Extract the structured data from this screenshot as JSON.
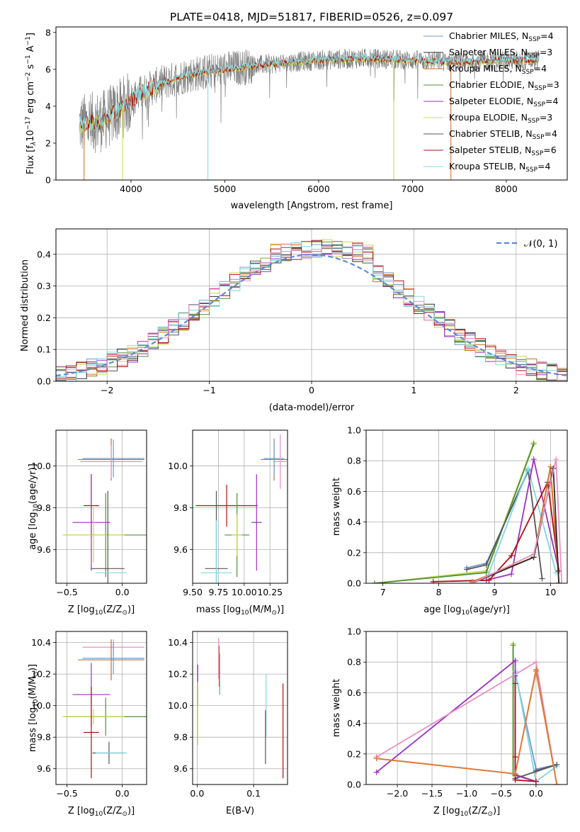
{
  "figure": {
    "title": "PLATE=0418, MJD=51817, FIBERID=0526, z=0.097"
  },
  "colors": {
    "Chabrier MILES": "#6e9bd1",
    "Salpeter MILES": "#2b2b2b",
    "Kroupa MILES": "#d2691e",
    "Chabrier ELODIE": "#4f8f3a",
    "Salpeter ELODIE": "#9b30c0",
    "Kroupa ELODIE": "#c8d84a",
    "Chabrier STELIB": "#555555",
    "Salpeter STELIB": "#b01010",
    "Kroupa STELIB": "#80d8e0",
    "pink": "#e890c0",
    "orange": "#e07b39",
    "normal": "#5b8bd8",
    "data": "#808080"
  },
  "chart_data": [
    {
      "id": "spectrum",
      "type": "line",
      "xlabel": "wavelength [Angstrom, rest frame]",
      "ylabel_main": "Flux [f",
      "ylabel_sub": "λ",
      "ylabel_rest": "10",
      "ylabel_exp": "−17",
      "ylabel_units": " erg cm",
      "ylabel_exp2": "−2",
      "ylabel_s": " s",
      "ylabel_exp3": "−1",
      "ylabel_a": " A",
      "ylabel_exp4": "−1",
      "ylabel_end": "]",
      "xlim": [
        3200,
        8650
      ],
      "ylim": [
        0,
        8.3
      ],
      "xticks": [
        "4000",
        "5000",
        "6000",
        "7000",
        "8000"
      ],
      "xtick_values": [
        4000,
        5000,
        6000,
        7000,
        8000
      ],
      "yticks": [
        "0",
        "2",
        "4",
        "6",
        "8"
      ],
      "ytick_values": [
        0,
        2,
        4,
        6,
        8
      ],
      "legend_position": "upper-right",
      "legend": [
        {
          "name": "Chabrier MILES, N",
          "sub": "SSP",
          "val": "=4",
          "color_key": "Chabrier MILES"
        },
        {
          "name": "Salpeter MILES, N",
          "sub": "SSP",
          "val": "=3",
          "color_key": "Salpeter MILES"
        },
        {
          "name": "Kroupa MILES, N",
          "sub": "SSP",
          "val": "=4",
          "color_key": "Kroupa MILES"
        },
        {
          "name": "Chabrier ELODIE, N",
          "sub": "SSP",
          "val": "=3",
          "color_key": "Chabrier ELODIE"
        },
        {
          "name": "Salpeter ELODIE, N",
          "sub": "SSP",
          "val": "=4",
          "color_key": "Salpeter ELODIE"
        },
        {
          "name": "Kroupa ELODIE, N",
          "sub": "SSP",
          "val": "=3",
          "color_key": "Kroupa ELODIE"
        },
        {
          "name": "Chabrier STELIB, N",
          "sub": "SSP",
          "val": "=4",
          "color_key": "Chabrier STELIB"
        },
        {
          "name": "Salpeter STELIB, N",
          "sub": "SSP",
          "val": "=6",
          "color_key": "Salpeter STELIB"
        },
        {
          "name": "Kroupa STELIB, N",
          "sub": "SSP",
          "val": "=4",
          "color_key": "Kroupa STELIB"
        }
      ],
      "continuum_x": [
        3450,
        3700,
        3900,
        4100,
        4300,
        4600,
        5000,
        5500,
        6000,
        6500,
        7000,
        7500,
        8000,
        8350
      ],
      "continuum_y": [
        3.0,
        3.2,
        3.9,
        4.7,
        5.2,
        5.7,
        6.0,
        6.3,
        6.5,
        6.6,
        6.5,
        6.4,
        6.5,
        6.5
      ],
      "model_xrange": [
        3450,
        8350
      ],
      "model_colors": [
        "Kroupa ELODIE",
        "Salpeter STELIB",
        "Kroupa STELIB"
      ],
      "edge_lines": [
        {
          "x": 3500,
          "color_key": "Kroupa MILES"
        },
        {
          "x": 3910,
          "color_key": "Kroupa ELODIE"
        },
        {
          "x": 4820,
          "color_key": "Kroupa STELIB"
        },
        {
          "x": 6800,
          "color_key": "Kroupa ELODIE"
        },
        {
          "x": 7410,
          "color_key": "Kroupa MILES"
        }
      ]
    },
    {
      "id": "residuals",
      "type": "line",
      "xlabel": "(data-model)/error",
      "ylabel": "Normed distribution",
      "xlim": [
        -2.5,
        2.5
      ],
      "ylim": [
        0,
        0.48
      ],
      "grid": true,
      "xticks": [
        "−2",
        "−1",
        "0",
        "1",
        "2"
      ],
      "xtick_values": [
        -2,
        -1,
        0,
        1,
        2
      ],
      "yticks": [
        "0.0",
        "0.1",
        "0.2",
        "0.3",
        "0.4"
      ],
      "ytick_values": [
        0,
        0.1,
        0.2,
        0.3,
        0.4
      ],
      "legend_position": "upper-right",
      "legend_label": "𝒩(0, 1)",
      "bin_width": 0.1,
      "histogram_colors": [
        "Chabrier MILES",
        "Salpeter MILES",
        "Kroupa MILES",
        "Chabrier ELODIE",
        "Salpeter ELODIE",
        "Kroupa ELODIE",
        "Chabrier STELIB",
        "Salpeter STELIB",
        "Kroupa STELIB",
        "pink"
      ]
    },
    {
      "id": "age_vs_Z",
      "type": "scatter",
      "xlabel": "Z [log",
      "xlabel_sub": "10",
      "xlabel_rest": "(Z/Z",
      "xlabel_sun": "⊙",
      "xlabel_end": ")]",
      "ylabel": "age  [log",
      "ylabel_sub": "10",
      "ylabel_rest": "(age/yr)]",
      "xlim": [
        -0.6,
        0.22
      ],
      "ylim": [
        9.44,
        10.17
      ],
      "grid": true,
      "xticks": [
        "−0.5",
        "0.0"
      ],
      "xtick_values": [
        -0.5,
        0.0
      ],
      "yticks": [
        "9.6",
        "9.8",
        "10.0"
      ],
      "ytick_values": [
        9.6,
        9.8,
        10.0
      ],
      "points": [
        {
          "x": -0.1,
          "y": 10.03,
          "xerr": 0.3,
          "yerr": 0.1,
          "color_key": "Kroupa MILES"
        },
        {
          "x": -0.08,
          "y": 10.035,
          "xerr": 0.28,
          "yerr": 0.09,
          "color_key": "Chabrier MILES"
        },
        {
          "x": -0.1,
          "y": 10.02,
          "xerr": 0.28,
          "yerr": 0.08,
          "color_key": "pink"
        },
        {
          "x": -0.28,
          "y": 9.81,
          "xerr": 0.07,
          "yerr": 0.15,
          "color_key": "Salpeter STELIB"
        },
        {
          "x": -0.28,
          "y": 9.73,
          "xerr": 0.17,
          "yerr": 0.23,
          "color_key": "Salpeter ELODIE"
        },
        {
          "x": -0.15,
          "y": 9.67,
          "xerr": 0.37,
          "yerr": 0.2,
          "color_key": "Chabrier ELODIE"
        },
        {
          "x": -0.26,
          "y": 9.67,
          "xerr": 0.28,
          "yerr": 0.13,
          "color_key": "Kroupa ELODIE"
        },
        {
          "x": -0.13,
          "y": 9.51,
          "xerr": 0.15,
          "yerr": 0.37,
          "color_key": "Chabrier STELIB"
        },
        {
          "x": -0.1,
          "y": 9.49,
          "xerr": 0.14,
          "yerr": 0.0,
          "color_key": "Kroupa STELIB"
        }
      ]
    },
    {
      "id": "age_vs_mass",
      "type": "scatter",
      "xlabel": "mass [log",
      "xlabel_sub": "10",
      "xlabel_rest": "(M/M",
      "xlabel_sun": "⊙",
      "xlabel_end": ")]",
      "xlim": [
        9.5,
        10.42
      ],
      "ylim": [
        9.44,
        10.17
      ],
      "grid": true,
      "xticks": [
        "9.50",
        "9.75",
        "10.00",
        "10.25"
      ],
      "xtick_values": [
        9.5,
        9.75,
        10.0,
        10.25
      ],
      "yticks": [
        "9.6",
        "9.8",
        "10.0"
      ],
      "ytick_values": [
        9.6,
        9.8,
        10.0
      ],
      "points": [
        {
          "x": 10.29,
          "y": 10.03,
          "xerr": 0.13,
          "yerr": 0.1,
          "color_key": "Kroupa MILES"
        },
        {
          "x": 10.29,
          "y": 10.035,
          "xerr": 0.1,
          "yerr": 0.09,
          "color_key": "Chabrier MILES"
        },
        {
          "x": 10.35,
          "y": 10.02,
          "xerr": 0.06,
          "yerr": 0.13,
          "color_key": "pink"
        },
        {
          "x": 9.83,
          "y": 9.81,
          "xerr": 0.3,
          "yerr": 0.1,
          "color_key": "Salpeter STELIB"
        },
        {
          "x": 10.12,
          "y": 9.73,
          "xerr": 0.05,
          "yerr": 0.23,
          "color_key": "Salpeter ELODIE"
        },
        {
          "x": 9.93,
          "y": 9.67,
          "xerr": 0.12,
          "yerr": 0.2,
          "color_key": "Chabrier ELODIE"
        },
        {
          "x": 9.93,
          "y": 9.67,
          "xerr": 0.05,
          "yerr": 0.1,
          "color_key": "Kroupa ELODIE"
        },
        {
          "x": 9.73,
          "y": 9.51,
          "xerr": 0.11,
          "yerr": 0.37,
          "color_key": "Chabrier STELIB"
        },
        {
          "x": 9.73,
          "y": 9.49,
          "xerr": 0.15,
          "yerr": 0.25,
          "color_key": "Kroupa STELIB"
        }
      ]
    },
    {
      "id": "mass_weight_vs_age",
      "type": "line",
      "xlabel": "age  [log",
      "xlabel_sub": "10",
      "xlabel_rest": "(age/yr)]",
      "ylabel": "mass weight",
      "xlim": [
        6.7,
        10.3
      ],
      "ylim": [
        0,
        1
      ],
      "grid": true,
      "xticks": [
        "7",
        "8",
        "9",
        "10"
      ],
      "xtick_values": [
        7,
        8,
        9,
        10
      ],
      "yticks": [
        "0.0",
        "0.2",
        "0.4",
        "0.6",
        "0.8",
        "1.0"
      ],
      "ytick_values": [
        0,
        0.2,
        0.4,
        0.6,
        0.8,
        1.0
      ],
      "series": [
        {
          "color_key": "Kroupa ELODIE",
          "x": [
            6.85,
            8.85,
            9.7
          ],
          "y": [
            0.0,
            0.08,
            0.92
          ]
        },
        {
          "color_key": "Chabrier ELODIE",
          "x": [
            6.85,
            8.85,
            9.7
          ],
          "y": [
            0.0,
            0.07,
            0.91
          ]
        },
        {
          "color_key": "Chabrier MILES",
          "x": [
            8.5,
            8.85,
            9.6
          ],
          "y": [
            0.1,
            0.13,
            0.73
          ]
        },
        {
          "color_key": "Chabrier STELIB",
          "x": [
            8.5,
            8.85,
            9.6,
            9.85
          ],
          "y": [
            0.09,
            0.12,
            0.74,
            0.03
          ]
        },
        {
          "color_key": "Kroupa STELIB",
          "x": [
            8.85,
            9.6,
            10.1
          ],
          "y": [
            0.02,
            0.75,
            0.07
          ]
        },
        {
          "color_key": "Salpeter ELODIE",
          "x": [
            8.85,
            9.3,
            9.7,
            10.15
          ],
          "y": [
            0.02,
            0.06,
            0.81,
            0.08
          ]
        },
        {
          "color_key": "Salpeter STELIB",
          "x": [
            7.9,
            8.9,
            9.3,
            9.95,
            10.15
          ],
          "y": [
            0.01,
            0.02,
            0.18,
            0.66,
            0.08
          ]
        },
        {
          "color_key": "Kroupa MILES",
          "x": [
            8.6,
            9.7,
            10.0,
            10.15
          ],
          "y": [
            0.01,
            0.17,
            0.76,
            0.0
          ]
        },
        {
          "color_key": "Salpeter MILES",
          "x": [
            8.6,
            9.7,
            10.05,
            10.15
          ],
          "y": [
            0.0,
            0.17,
            0.75,
            0.0
          ]
        },
        {
          "color_key": "pink",
          "x": [
            8.6,
            9.7,
            10.1,
            10.2
          ],
          "y": [
            0.0,
            0.19,
            0.81,
            0.0
          ]
        }
      ]
    },
    {
      "id": "mass_vs_Z",
      "type": "scatter",
      "xlabel": "Z [log",
      "xlabel_sub": "10",
      "xlabel_rest": "(Z/Z",
      "xlabel_sun": "⊙",
      "xlabel_end": ")]",
      "ylabel": "mass [log",
      "ylabel_sub": "10",
      "ylabel_rest": "(M/M",
      "ylabel_sun": "⊙",
      "ylabel_end": ")]",
      "xlim": [
        -0.6,
        0.22
      ],
      "ylim": [
        9.5,
        10.47
      ],
      "grid": true,
      "xticks": [
        "−0.5",
        "0.0"
      ],
      "xtick_values": [
        -0.5,
        0.0
      ],
      "yticks": [
        "9.6",
        "9.8",
        "10.0",
        "10.2",
        "10.4"
      ],
      "ytick_values": [
        9.6,
        9.8,
        10.0,
        10.2,
        10.4
      ],
      "points": [
        {
          "x": -0.08,
          "y": 10.37,
          "xerr": 0.28,
          "yerr": 0.05,
          "color_key": "pink"
        },
        {
          "x": -0.08,
          "y": 10.3,
          "xerr": 0.28,
          "yerr": 0.1,
          "color_key": "Chabrier MILES"
        },
        {
          "x": -0.1,
          "y": 10.29,
          "xerr": 0.3,
          "yerr": 0.13,
          "color_key": "Kroupa MILES"
        },
        {
          "x": -0.28,
          "y": 10.07,
          "xerr": 0.17,
          "yerr": 0.2,
          "color_key": "Salpeter ELODIE"
        },
        {
          "x": -0.15,
          "y": 9.93,
          "xerr": 0.37,
          "yerr": 0.12,
          "color_key": "Chabrier ELODIE"
        },
        {
          "x": -0.26,
          "y": 9.93,
          "xerr": 0.28,
          "yerr": 0.05,
          "color_key": "Kroupa ELODIE"
        },
        {
          "x": -0.28,
          "y": 9.83,
          "xerr": 0.07,
          "yerr": 0.29,
          "color_key": "Salpeter STELIB"
        },
        {
          "x": -0.12,
          "y": 9.7,
          "xerr": 0.15,
          "yerr": 0.07,
          "color_key": "Chabrier STELIB"
        },
        {
          "x": -0.1,
          "y": 9.7,
          "xerr": 0.14,
          "yerr": 0.0,
          "color_key": "Kroupa STELIB"
        }
      ]
    },
    {
      "id": "mass_vs_ebv",
      "type": "scatter",
      "xlabel": "E(B-V)",
      "xlim": [
        -0.008,
        0.16
      ],
      "ylim": [
        9.5,
        10.47
      ],
      "grid": true,
      "xticks": [
        "0.0",
        "0.1"
      ],
      "xtick_values": [
        0.0,
        0.1
      ],
      "yticks": [
        "9.6",
        "9.8",
        "10.0",
        "10.2",
        "10.4"
      ],
      "ytick_values": [
        9.6,
        9.8,
        10.0,
        10.2,
        10.4
      ],
      "points": [
        {
          "x": 0.001,
          "y": 10.13,
          "xerr": 0,
          "yerr": 0.13,
          "color_key": "Salpeter ELODIE"
        },
        {
          "x": 0.001,
          "y": 9.95,
          "xerr": 0,
          "yerr": 0.2,
          "color_key": "Kroupa ELODIE"
        },
        {
          "x": 0.038,
          "y": 10.3,
          "xerr": 0,
          "yerr": 0.13,
          "color_key": "pink"
        },
        {
          "x": 0.04,
          "y": 10.2,
          "xerr": 0,
          "yerr": 0.13,
          "color_key": "Chabrier MILES"
        },
        {
          "x": 0.039,
          "y": 10.25,
          "xerr": 0,
          "yerr": 0.13,
          "color_key": "Kroupa MILES"
        },
        {
          "x": 0.122,
          "y": 10.0,
          "xerr": 0,
          "yerr": 0.2,
          "color_key": "Kroupa STELIB"
        },
        {
          "x": 0.121,
          "y": 9.8,
          "xerr": 0,
          "yerr": 0.17,
          "color_key": "Chabrier STELIB"
        },
        {
          "x": 0.152,
          "y": 9.84,
          "xerr": 0,
          "yerr": 0.3,
          "color_key": "Salpeter STELIB"
        }
      ]
    },
    {
      "id": "mass_weight_vs_Z",
      "type": "line",
      "xlabel": "Z [log",
      "xlabel_sub": "10",
      "xlabel_rest": "(Z/Z",
      "xlabel_sun": "⊙",
      "xlabel_end": ")]",
      "ylabel": "mass weight",
      "xlim": [
        -2.45,
        0.45
      ],
      "ylim": [
        0,
        1
      ],
      "grid": true,
      "xticks": [
        "−2.0",
        "−1.5",
        "−1.0",
        "−0.5",
        "0.0"
      ],
      "xtick_values": [
        -2.0,
        -1.5,
        -1.0,
        -0.5,
        0.0
      ],
      "yticks": [
        "0.0",
        "0.2",
        "0.4",
        "0.6",
        "0.8",
        "1.0"
      ],
      "ytick_values": [
        0,
        0.2,
        0.4,
        0.6,
        0.8,
        1.0
      ],
      "series": [
        {
          "color_key": "Kroupa ELODIE",
          "x": [
            -0.33,
            -0.33,
            0.0
          ],
          "y": [
            0.92,
            0.07,
            0.02
          ]
        },
        {
          "color_key": "Chabrier ELODIE",
          "x": [
            -0.33,
            -0.33,
            0.0
          ],
          "y": [
            0.91,
            0.07,
            0.02
          ]
        },
        {
          "color_key": "Chabrier MILES",
          "x": [
            -0.3,
            0.0,
            0.3
          ],
          "y": [
            0.73,
            0.1,
            0.13
          ]
        },
        {
          "color_key": "Kroupa STELIB",
          "x": [
            -0.3,
            0.0,
            0.3
          ],
          "y": [
            0.74,
            0.02,
            0.12
          ]
        },
        {
          "color_key": "Chabrier STELIB",
          "x": [
            -0.3,
            -0.3,
            0.3,
            0.0
          ],
          "y": [
            0.71,
            0.04,
            0.13,
            0.09
          ]
        },
        {
          "color_key": "Salpeter ELODIE",
          "x": [
            -2.3,
            -0.3,
            -0.3,
            0.0
          ],
          "y": [
            0.08,
            0.81,
            0.06,
            0.02
          ]
        },
        {
          "color_key": "Salpeter STELIB",
          "x": [
            -0.3,
            -0.3,
            -0.3,
            0.0
          ],
          "y": [
            0.66,
            0.18,
            0.03,
            0.02
          ]
        },
        {
          "color_key": "pink",
          "x": [
            -2.3,
            0.0,
            0.3
          ],
          "y": [
            0.18,
            0.8,
            0.0
          ]
        },
        {
          "color_key": "Kroupa MILES",
          "x": [
            -2.3,
            -0.3,
            0.0,
            0.3
          ],
          "y": [
            0.17,
            0.07,
            0.75,
            0.0
          ]
        },
        {
          "color_key": "orange",
          "x": [
            -2.3,
            -0.3,
            0.0,
            0.3
          ],
          "y": [
            0.17,
            0.07,
            0.74,
            0.0
          ]
        }
      ]
    }
  ]
}
